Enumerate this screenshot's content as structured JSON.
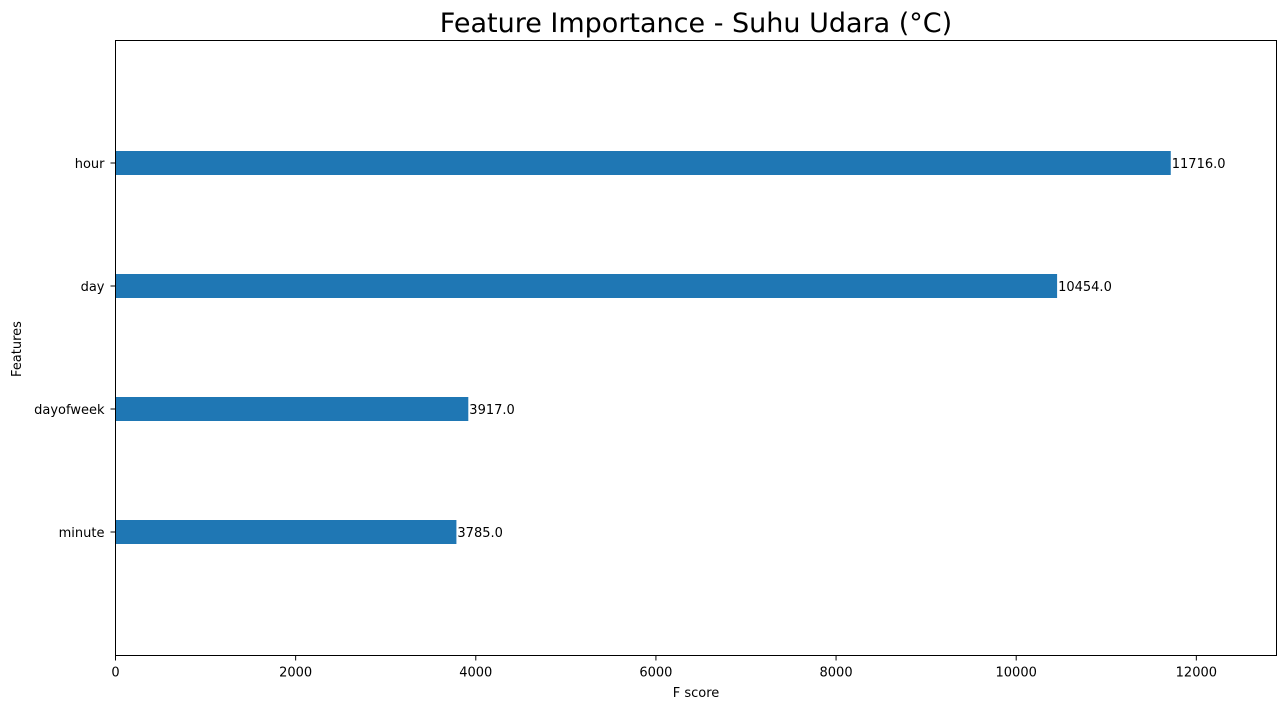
{
  "chart_data": {
    "type": "bar",
    "orientation": "horizontal",
    "title": "Feature Importance - Suhu Udara (°C)",
    "xlabel": "F score",
    "ylabel": "Features",
    "categories": [
      "hour",
      "day",
      "dayofweek",
      "minute"
    ],
    "values": [
      11716.0,
      10454.0,
      3917.0,
      3785.0
    ],
    "data_labels": [
      "11716.0",
      "10454.0",
      "3917.0",
      "3785.0"
    ],
    "xlim": [
      0,
      12890
    ],
    "xticks": [
      0,
      2000,
      4000,
      6000,
      8000,
      10000,
      12000
    ],
    "xtick_labels": [
      "0",
      "2000",
      "4000",
      "6000",
      "8000",
      "10000",
      "12000"
    ],
    "grid": false,
    "bar_color": "#1f77b4"
  }
}
